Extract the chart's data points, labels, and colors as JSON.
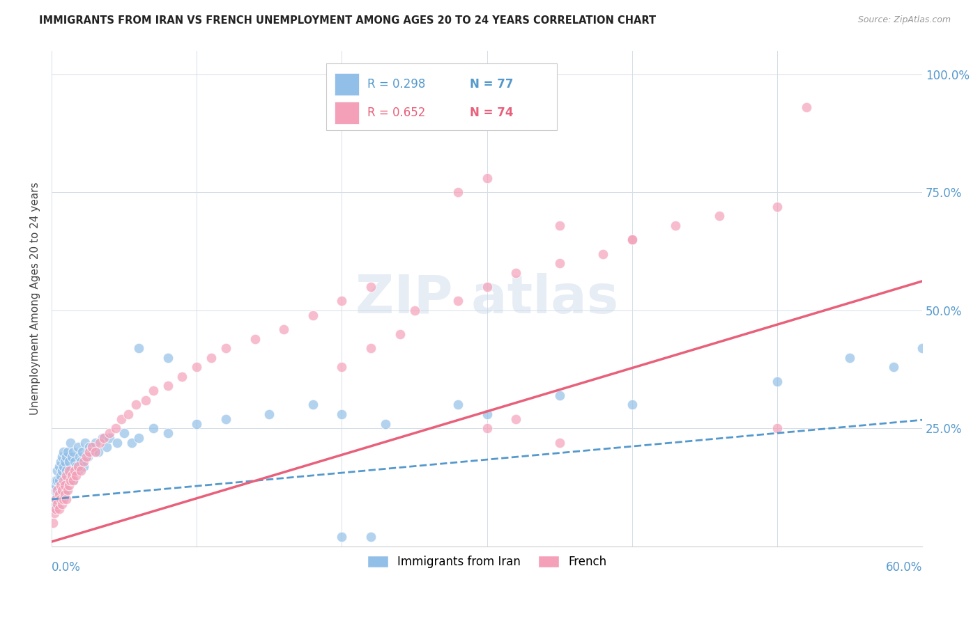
{
  "title": "IMMIGRANTS FROM IRAN VS FRENCH UNEMPLOYMENT AMONG AGES 20 TO 24 YEARS CORRELATION CHART",
  "source": "Source: ZipAtlas.com",
  "ylabel": "Unemployment Among Ages 20 to 24 years",
  "xlim": [
    0.0,
    0.6
  ],
  "ylim": [
    0.0,
    1.05
  ],
  "yticks": [
    0.0,
    0.25,
    0.5,
    0.75,
    1.0
  ],
  "right_ytick_labels": [
    "",
    "25.0%",
    "50.0%",
    "75.0%",
    "100.0%"
  ],
  "blue_color": "#92bfe8",
  "pink_color": "#f4a0b8",
  "blue_line_color": "#5599cc",
  "pink_line_color": "#e8607a",
  "blue_scatter_x": [
    0.001,
    0.002,
    0.002,
    0.003,
    0.003,
    0.003,
    0.004,
    0.004,
    0.004,
    0.005,
    0.005,
    0.005,
    0.006,
    0.006,
    0.006,
    0.007,
    0.007,
    0.007,
    0.008,
    0.008,
    0.008,
    0.009,
    0.009,
    0.01,
    0.01,
    0.01,
    0.011,
    0.011,
    0.012,
    0.012,
    0.013,
    0.013,
    0.014,
    0.014,
    0.015,
    0.015,
    0.016,
    0.017,
    0.018,
    0.018,
    0.019,
    0.02,
    0.021,
    0.022,
    0.023,
    0.025,
    0.026,
    0.028,
    0.03,
    0.032,
    0.035,
    0.038,
    0.04,
    0.045,
    0.05,
    0.055,
    0.06,
    0.07,
    0.08,
    0.1,
    0.12,
    0.15,
    0.18,
    0.2,
    0.23,
    0.28,
    0.3,
    0.35,
    0.4,
    0.5,
    0.55,
    0.58,
    0.6,
    0.2,
    0.22,
    0.06,
    0.08
  ],
  "blue_scatter_y": [
    0.08,
    0.09,
    0.12,
    0.1,
    0.13,
    0.14,
    0.11,
    0.14,
    0.16,
    0.1,
    0.14,
    0.17,
    0.12,
    0.15,
    0.18,
    0.11,
    0.16,
    0.19,
    0.13,
    0.17,
    0.2,
    0.14,
    0.18,
    0.12,
    0.16,
    0.19,
    0.15,
    0.2,
    0.14,
    0.18,
    0.16,
    0.22,
    0.15,
    0.19,
    0.14,
    0.2,
    0.18,
    0.17,
    0.16,
    0.21,
    0.19,
    0.18,
    0.2,
    0.17,
    0.22,
    0.19,
    0.21,
    0.2,
    0.22,
    0.2,
    0.23,
    0.21,
    0.23,
    0.22,
    0.24,
    0.22,
    0.23,
    0.25,
    0.24,
    0.26,
    0.27,
    0.28,
    0.3,
    0.28,
    0.26,
    0.3,
    0.28,
    0.32,
    0.3,
    0.35,
    0.4,
    0.38,
    0.42,
    0.02,
    0.02,
    0.42,
    0.4
  ],
  "pink_scatter_x": [
    0.001,
    0.002,
    0.003,
    0.003,
    0.004,
    0.004,
    0.005,
    0.005,
    0.006,
    0.006,
    0.007,
    0.007,
    0.008,
    0.008,
    0.009,
    0.009,
    0.01,
    0.01,
    0.011,
    0.012,
    0.012,
    0.013,
    0.014,
    0.015,
    0.016,
    0.017,
    0.018,
    0.02,
    0.022,
    0.024,
    0.026,
    0.028,
    0.03,
    0.033,
    0.036,
    0.04,
    0.044,
    0.048,
    0.053,
    0.058,
    0.065,
    0.07,
    0.08,
    0.09,
    0.1,
    0.11,
    0.12,
    0.14,
    0.16,
    0.18,
    0.2,
    0.22,
    0.25,
    0.28,
    0.3,
    0.32,
    0.35,
    0.38,
    0.4,
    0.43,
    0.46,
    0.5,
    0.28,
    0.3,
    0.35,
    0.4,
    0.2,
    0.22,
    0.24,
    0.3,
    0.32,
    0.35,
    0.5,
    0.52
  ],
  "pink_scatter_y": [
    0.05,
    0.07,
    0.08,
    0.1,
    0.09,
    0.12,
    0.08,
    0.11,
    0.1,
    0.13,
    0.09,
    0.12,
    0.1,
    0.14,
    0.11,
    0.13,
    0.1,
    0.15,
    0.12,
    0.13,
    0.16,
    0.14,
    0.15,
    0.14,
    0.16,
    0.15,
    0.17,
    0.16,
    0.18,
    0.19,
    0.2,
    0.21,
    0.2,
    0.22,
    0.23,
    0.24,
    0.25,
    0.27,
    0.28,
    0.3,
    0.31,
    0.33,
    0.34,
    0.36,
    0.38,
    0.4,
    0.42,
    0.44,
    0.46,
    0.49,
    0.52,
    0.55,
    0.5,
    0.52,
    0.55,
    0.58,
    0.6,
    0.62,
    0.65,
    0.68,
    0.7,
    0.72,
    0.75,
    0.78,
    0.68,
    0.65,
    0.38,
    0.42,
    0.45,
    0.25,
    0.27,
    0.22,
    0.25,
    0.93
  ]
}
